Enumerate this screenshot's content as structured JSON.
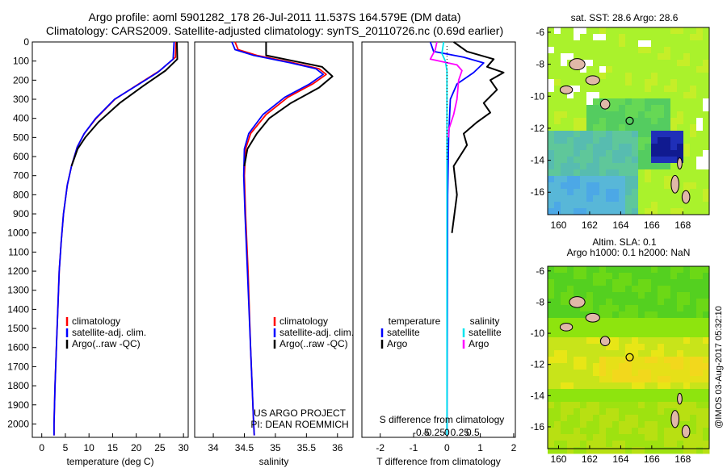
{
  "title_line1": "Argo profile: aoml 5901282_178 26-Jul-2011 11.537S 164.579E (DM data)",
  "title_line2": "Climatology: CARS2009. Satellite-adjusted climatology: synTS_20110726.nc (0.69d earlier)",
  "credit": "@IMOS 03-Aug-2017 05:32:10",
  "project_line1": "US ARGO PROJECT",
  "project_line2": "PI: DEAN ROEMMICH",
  "colors": {
    "climatology": "#ff0000",
    "satellite": "#0000ff",
    "argo": "#000000",
    "sal_satellite": "#00e5ee",
    "sal_argo": "#ff00ff"
  },
  "chart_data": [
    {
      "type": "line",
      "name": "temperature",
      "xlabel": "temperature (deg C)",
      "ylabel": "",
      "xlim": [
        -2,
        31
      ],
      "ylim": [
        2070,
        0
      ],
      "xticks": [
        0,
        5,
        10,
        15,
        20,
        25,
        30
      ],
      "yticks": [
        0,
        100,
        200,
        300,
        400,
        500,
        600,
        700,
        800,
        900,
        1000,
        1100,
        1200,
        1300,
        1400,
        1500,
        1600,
        1700,
        1800,
        1900,
        2000
      ],
      "legend": [
        "climatology",
        "satellite-adj. clim.",
        "Argo(..raw -QC)"
      ],
      "series": [
        {
          "name": "climatology",
          "color": "#ff0000",
          "points": [
            [
              28.4,
              0
            ],
            [
              28.3,
              80
            ],
            [
              25,
              150
            ],
            [
              20.5,
              220
            ],
            [
              15.5,
              300
            ],
            [
              11.5,
              400
            ],
            [
              9,
              480
            ],
            [
              7.5,
              550
            ],
            [
              6.3,
              650
            ],
            [
              5.4,
              750
            ],
            [
              4.6,
              900
            ],
            [
              4.1,
              1050
            ],
            [
              3.7,
              1200
            ],
            [
              3.4,
              1400
            ],
            [
              3.1,
              1600
            ],
            [
              2.8,
              1800
            ],
            [
              2.6,
              2000
            ],
            [
              2.6,
              2060
            ]
          ]
        },
        {
          "name": "satellite-adj. clim.",
          "color": "#0000ff",
          "points": [
            [
              28.0,
              0
            ],
            [
              27.8,
              90
            ],
            [
              24.5,
              160
            ],
            [
              20,
              230
            ],
            [
              15.4,
              300
            ],
            [
              11.4,
              400
            ],
            [
              9,
              480
            ],
            [
              7.5,
              550
            ],
            [
              6.3,
              650
            ],
            [
              5.4,
              750
            ],
            [
              4.6,
              900
            ],
            [
              4.1,
              1050
            ],
            [
              3.7,
              1200
            ],
            [
              3.4,
              1400
            ],
            [
              3.1,
              1600
            ],
            [
              2.8,
              1800
            ],
            [
              2.6,
              2000
            ],
            [
              2.6,
              2060
            ]
          ]
        },
        {
          "name": "Argo",
          "color": "#000000",
          "points": [
            [
              28.6,
              0
            ],
            [
              28.7,
              90
            ],
            [
              26.2,
              150
            ],
            [
              21.5,
              230
            ],
            [
              16.5,
              320
            ],
            [
              12,
              420
            ],
            [
              9.2,
              500
            ],
            [
              7.6,
              560
            ],
            [
              6.3,
              650
            ]
          ]
        }
      ]
    },
    {
      "type": "line",
      "name": "salinity",
      "xlabel": "salinity",
      "xlim": [
        33.7,
        36.25
      ],
      "ylim": [
        2070,
        0
      ],
      "xticks": [
        34,
        34.5,
        35,
        35.5,
        36
      ],
      "legend": [
        "climatology",
        "satellite-adj. clim.",
        "Argo(..raw -QC)"
      ],
      "series": [
        {
          "name": "climatology",
          "color": "#ff0000",
          "points": [
            [
              34.35,
              0
            ],
            [
              34.4,
              40
            ],
            [
              34.7,
              70
            ],
            [
              35.3,
              110
            ],
            [
              35.7,
              140
            ],
            [
              35.82,
              170
            ],
            [
              35.6,
              220
            ],
            [
              35.2,
              290
            ],
            [
              34.85,
              380
            ],
            [
              34.6,
              480
            ],
            [
              34.52,
              560
            ],
            [
              34.5,
              700
            ],
            [
              34.52,
              900
            ],
            [
              34.56,
              1200
            ],
            [
              34.6,
              1600
            ],
            [
              34.65,
              2000
            ],
            [
              34.66,
              2060
            ]
          ]
        },
        {
          "name": "satellite-adj. clim.",
          "color": "#0000ff",
          "points": [
            [
              34.3,
              0
            ],
            [
              34.35,
              40
            ],
            [
              34.65,
              70
            ],
            [
              35.25,
              110
            ],
            [
              35.65,
              140
            ],
            [
              35.77,
              170
            ],
            [
              35.55,
              220
            ],
            [
              35.15,
              290
            ],
            [
              34.8,
              380
            ],
            [
              34.57,
              480
            ],
            [
              34.5,
              560
            ],
            [
              34.49,
              700
            ],
            [
              34.51,
              900
            ],
            [
              34.55,
              1200
            ],
            [
              34.6,
              1600
            ],
            [
              34.65,
              2000
            ],
            [
              34.66,
              2060
            ]
          ]
        },
        {
          "name": "Argo",
          "color": "#000000",
          "points": [
            [
              34.85,
              0
            ],
            [
              34.85,
              70
            ],
            [
              35.3,
              100
            ],
            [
              35.75,
              130
            ],
            [
              35.92,
              180
            ],
            [
              35.7,
              240
            ],
            [
              35.25,
              320
            ],
            [
              34.9,
              400
            ],
            [
              34.7,
              480
            ],
            [
              34.55,
              560
            ],
            [
              34.5,
              650
            ]
          ]
        }
      ]
    },
    {
      "type": "line",
      "name": "difference from climatology",
      "xlabel": "T difference from climatology",
      "xlabel_top": "S difference from climatology",
      "xlim": [
        -2.55,
        2.05
      ],
      "ylim": [
        2070,
        0
      ],
      "xticks": [
        -2,
        -1,
        0,
        1,
        2
      ],
      "xticklabels": [
        "-2",
        "-1",
        "0",
        "1",
        "2"
      ],
      "xticks_top": [
        -0.5,
        -0.25,
        0,
        0.25,
        0.5
      ],
      "xticklabels_top": [
        "-0.5",
        "-0.25",
        "0",
        "0.25",
        "0.5"
      ],
      "legend_temperature_title": "temperature",
      "legend_salinity_title": "salinity",
      "legend": [
        "satellite",
        "Argo",
        "satellite",
        "Argo"
      ],
      "series": [
        {
          "name": "temperature satellite",
          "color": "#0000ff",
          "points": [
            [
              -0.5,
              0
            ],
            [
              -0.4,
              50
            ],
            [
              0.5,
              80
            ],
            [
              1.1,
              110
            ],
            [
              0.8,
              160
            ],
            [
              0.3,
              220
            ],
            [
              0.1,
              300
            ],
            [
              0.05,
              500
            ],
            [
              0.02,
              800
            ],
            [
              0,
              2060
            ]
          ]
        },
        {
          "name": "temperature Argo",
          "color": "#000000",
          "points": [
            [
              0.2,
              0
            ],
            [
              0.6,
              50
            ],
            [
              1.4,
              90
            ],
            [
              1.2,
              130
            ],
            [
              1.7,
              160
            ],
            [
              1.3,
              200
            ],
            [
              1.5,
              250
            ],
            [
              1.1,
              320
            ],
            [
              1.3,
              370
            ],
            [
              0.9,
              420
            ],
            [
              0.5,
              480
            ],
            [
              0.6,
              540
            ],
            [
              0.2,
              650
            ],
            [
              0.3,
              800
            ],
            [
              0.15,
              1000
            ]
          ]
        },
        {
          "name": "salinity satellite",
          "color": "#00e5ee",
          "points": [
            [
              -0.1,
              0
            ],
            [
              -0.15,
              60
            ],
            [
              -0.05,
              100
            ],
            [
              0,
              150
            ],
            [
              0,
              300
            ],
            [
              0,
              500
            ],
            [
              0,
              800
            ],
            [
              0,
              2060
            ]
          ]
        },
        {
          "name": "salinity Argo",
          "color": "#ff00ff",
          "points": [
            [
              -0.3,
              0
            ],
            [
              -0.35,
              40
            ],
            [
              -0.5,
              90
            ],
            [
              0.3,
              120
            ],
            [
              0.45,
              150
            ],
            [
              0.35,
              200
            ],
            [
              0.3,
              300
            ],
            [
              0.2,
              380
            ],
            [
              0.05,
              460
            ],
            [
              0.05,
              500
            ]
          ]
        }
      ]
    },
    {
      "type": "heatmap",
      "name": "sat_sst",
      "title": "sat. SST: 28.6 Argo: 28.6",
      "xlim": [
        159.3,
        169.7
      ],
      "ylim": [
        -17.4,
        -5.7
      ],
      "xticks": [
        160,
        162,
        164,
        166,
        168
      ],
      "yticks": [
        -6,
        -8,
        -10,
        -12,
        -14,
        -16
      ],
      "marker": {
        "lon": 164.579,
        "lat": -11.537
      }
    },
    {
      "type": "heatmap",
      "name": "altim_sla",
      "title_line1": "Altim. SLA: 0.1",
      "title_line2": "Argo h1000: 0.1 h2000: NaN",
      "xlim": [
        159.3,
        169.7
      ],
      "ylim": [
        -17.4,
        -5.7
      ],
      "xticks": [
        160,
        162,
        164,
        166,
        168
      ],
      "yticks": [
        -6,
        -8,
        -10,
        -12,
        -14,
        -16
      ],
      "marker": {
        "lon": 164.579,
        "lat": -11.537
      }
    }
  ]
}
